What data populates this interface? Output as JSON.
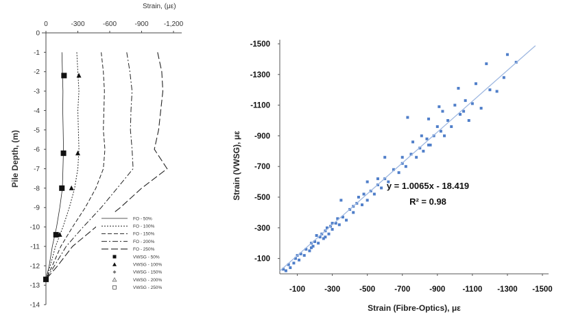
{
  "chart_data": [
    {
      "type": "line",
      "top_axis_label": "Strain, (με)",
      "xlabel": "",
      "ylabel": "Pile Depth, (m)",
      "x_ticks": [
        "0",
        "-300",
        "-600",
        "-900",
        "-1,200"
      ],
      "x_ticks_extra": [
        "0"
      ],
      "y_ticks": [
        "0",
        "-1",
        "-2",
        "-3",
        "-4",
        "-5",
        "-6",
        "-7",
        "-8",
        "-9",
        "-10",
        "-11",
        "-12",
        "-13",
        "-14"
      ],
      "xlim": [
        100,
        -1200
      ],
      "ylim": [
        0,
        -14
      ],
      "legend_position": "bottom-right",
      "series": [
        {
          "name": "FO - 50%",
          "style": "solid-thin",
          "depth": [
            -1,
            -2,
            -3,
            -4,
            -5,
            -6,
            -7,
            -8,
            -9,
            -10,
            -11,
            -12,
            -12.7
          ],
          "strain": [
            -150,
            -155,
            -160,
            -158,
            -162,
            -165,
            -160,
            -155,
            -130,
            -100,
            -60,
            -30,
            0
          ]
        },
        {
          "name": "FO - 100%",
          "style": "dotted",
          "depth": [
            -1,
            -2,
            -3,
            -4,
            -5,
            -6,
            -7,
            -8,
            -9,
            -10,
            -11,
            -12,
            -12.7
          ],
          "strain": [
            -290,
            -300,
            -310,
            -300,
            -305,
            -310,
            -300,
            -270,
            -220,
            -160,
            -90,
            -40,
            0
          ]
        },
        {
          "name": "FO - 150%",
          "style": "dashed",
          "depth": [
            -1,
            -2,
            -3,
            -4,
            -5,
            -6,
            -7,
            -8,
            -9,
            -10,
            -11,
            -12,
            -12.7
          ],
          "strain": [
            -520,
            -540,
            -550,
            -545,
            -540,
            -555,
            -540,
            -470,
            -370,
            -250,
            -140,
            -60,
            0
          ]
        },
        {
          "name": "FO - 200%",
          "style": "dash-dot",
          "depth": [
            -1,
            -2,
            -3,
            -4,
            -5,
            -6,
            -7,
            -8,
            -9,
            -10,
            -11,
            -12,
            -12.7
          ],
          "strain": [
            -760,
            -790,
            -810,
            -800,
            -795,
            -810,
            -820,
            -670,
            -520,
            -350,
            -190,
            -80,
            0
          ]
        },
        {
          "name": "FO - 250%",
          "style": "long-dash",
          "depth": [
            -1,
            -2,
            -3,
            -4,
            -5,
            -6,
            -7,
            -8,
            -9,
            -10,
            -11,
            -12,
            -12.7
          ],
          "strain": [
            -1050,
            -1090,
            -1100,
            -1080,
            -1060,
            -1020,
            -1140,
            -900,
            -700,
            -470,
            -250,
            -110,
            0
          ]
        },
        {
          "name": "VWSG - 50%",
          "marker": "square",
          "depth": [
            -2.2,
            -6.2,
            -8,
            -10.4,
            -12.7
          ],
          "strain": [
            -170,
            -165,
            -150,
            -95,
            0
          ]
        },
        {
          "name": "VWSG - 100%",
          "marker": "triangle",
          "depth": [
            -2.2,
            -6.2,
            -8,
            -10.4
          ],
          "strain": [
            -310,
            -300,
            -240,
            -130
          ]
        },
        {
          "name": "VWSG - 150%",
          "marker": "diamond",
          "depth": [],
          "strain": []
        },
        {
          "name": "VWSG - 200%",
          "marker": "triangle-open",
          "depth": [],
          "strain": []
        },
        {
          "name": "VWSG - 250%",
          "marker": "square-open",
          "depth": [],
          "strain": []
        }
      ]
    },
    {
      "type": "scatter",
      "xlabel": "Strain (Fibre-Optics), με",
      "ylabel": "Strain (VWSG), με",
      "xlim": [
        0,
        -1500
      ],
      "ylim": [
        0,
        -1500
      ],
      "x_ticks": [
        "-100",
        "-300",
        "-500",
        "-700",
        "-900",
        "-1100",
        "-1300",
        "-1500"
      ],
      "y_ticks": [
        "-100",
        "-300",
        "-500",
        "-700",
        "-900",
        "-1100",
        "-1300",
        "-1500"
      ],
      "trendline": {
        "slope": 1.0065,
        "intercept": -18.419
      },
      "equation_text": "y = 1.0065x - 18.419",
      "r2_text": "R² = 0.98",
      "color": "#4f7ec9",
      "points": [
        [
          -20,
          -30
        ],
        [
          -35,
          -20
        ],
        [
          -50,
          -60
        ],
        [
          -60,
          -40
        ],
        [
          -80,
          -70
        ],
        [
          -90,
          -100
        ],
        [
          -110,
          -90
        ],
        [
          -120,
          -130
        ],
        [
          -140,
          -120
        ],
        [
          -150,
          -160
        ],
        [
          -170,
          -150
        ],
        [
          -180,
          -200
        ],
        [
          -190,
          -180
        ],
        [
          -200,
          -210
        ],
        [
          -210,
          -250
        ],
        [
          -220,
          -200
        ],
        [
          -230,
          -240
        ],
        [
          -240,
          -260
        ],
        [
          -250,
          -230
        ],
        [
          -260,
          -280
        ],
        [
          -270,
          -300
        ],
        [
          -280,
          -260
        ],
        [
          -290,
          -310
        ],
        [
          -300,
          -290
        ],
        [
          -320,
          -330
        ],
        [
          -330,
          -360
        ],
        [
          -340,
          -320
        ],
        [
          -350,
          -480
        ],
        [
          -360,
          -370
        ],
        [
          -380,
          -350
        ],
        [
          -400,
          -420
        ],
        [
          -420,
          -400
        ],
        [
          -440,
          -460
        ],
        [
          -450,
          -500
        ],
        [
          -470,
          -450
        ],
        [
          -480,
          -520
        ],
        [
          -500,
          -480
        ],
        [
          -500,
          -600
        ],
        [
          -520,
          -540
        ],
        [
          -540,
          -520
        ],
        [
          -560,
          -580
        ],
        [
          -580,
          -560
        ],
        [
          -600,
          -620
        ],
        [
          -600,
          -760
        ],
        [
          -620,
          -600
        ],
        [
          -650,
          -680
        ],
        [
          -680,
          -660
        ],
        [
          -700,
          -720
        ],
        [
          -720,
          -700
        ],
        [
          -730,
          -1020
        ],
        [
          -750,
          -780
        ],
        [
          -760,
          -860
        ],
        [
          -780,
          -760
        ],
        [
          -800,
          -820
        ],
        [
          -810,
          -900
        ],
        [
          -820,
          -800
        ],
        [
          -840,
          -880
        ],
        [
          -850,
          -1010
        ],
        [
          -860,
          -840
        ],
        [
          -880,
          -900
        ],
        [
          -900,
          -960
        ],
        [
          -910,
          -1090
        ],
        [
          -920,
          -930
        ],
        [
          -930,
          -1060
        ],
        [
          -940,
          -900
        ],
        [
          -960,
          -1000
        ],
        [
          -980,
          -960
        ],
        [
          -1000,
          -1100
        ],
        [
          -1020,
          -1210
        ],
        [
          -1030,
          -1040
        ],
        [
          -1050,
          -1060
        ],
        [
          -1060,
          -1130
        ],
        [
          -1080,
          -1000
        ],
        [
          -1100,
          -1110
        ],
        [
          -1120,
          -1240
        ],
        [
          -1150,
          -1080
        ],
        [
          -1180,
          -1370
        ],
        [
          -1200,
          -1200
        ],
        [
          -1240,
          -1190
        ],
        [
          -1280,
          -1280
        ],
        [
          -1300,
          -1430
        ],
        [
          -1350,
          -1380
        ],
        [
          -850,
          -840
        ],
        [
          -700,
          -760
        ],
        [
          -560,
          -620
        ],
        [
          -420,
          -440
        ],
        [
          -300,
          -330
        ],
        [
          -260,
          -240
        ],
        [
          -180,
          -170
        ],
        [
          -100,
          -120
        ]
      ]
    }
  ]
}
